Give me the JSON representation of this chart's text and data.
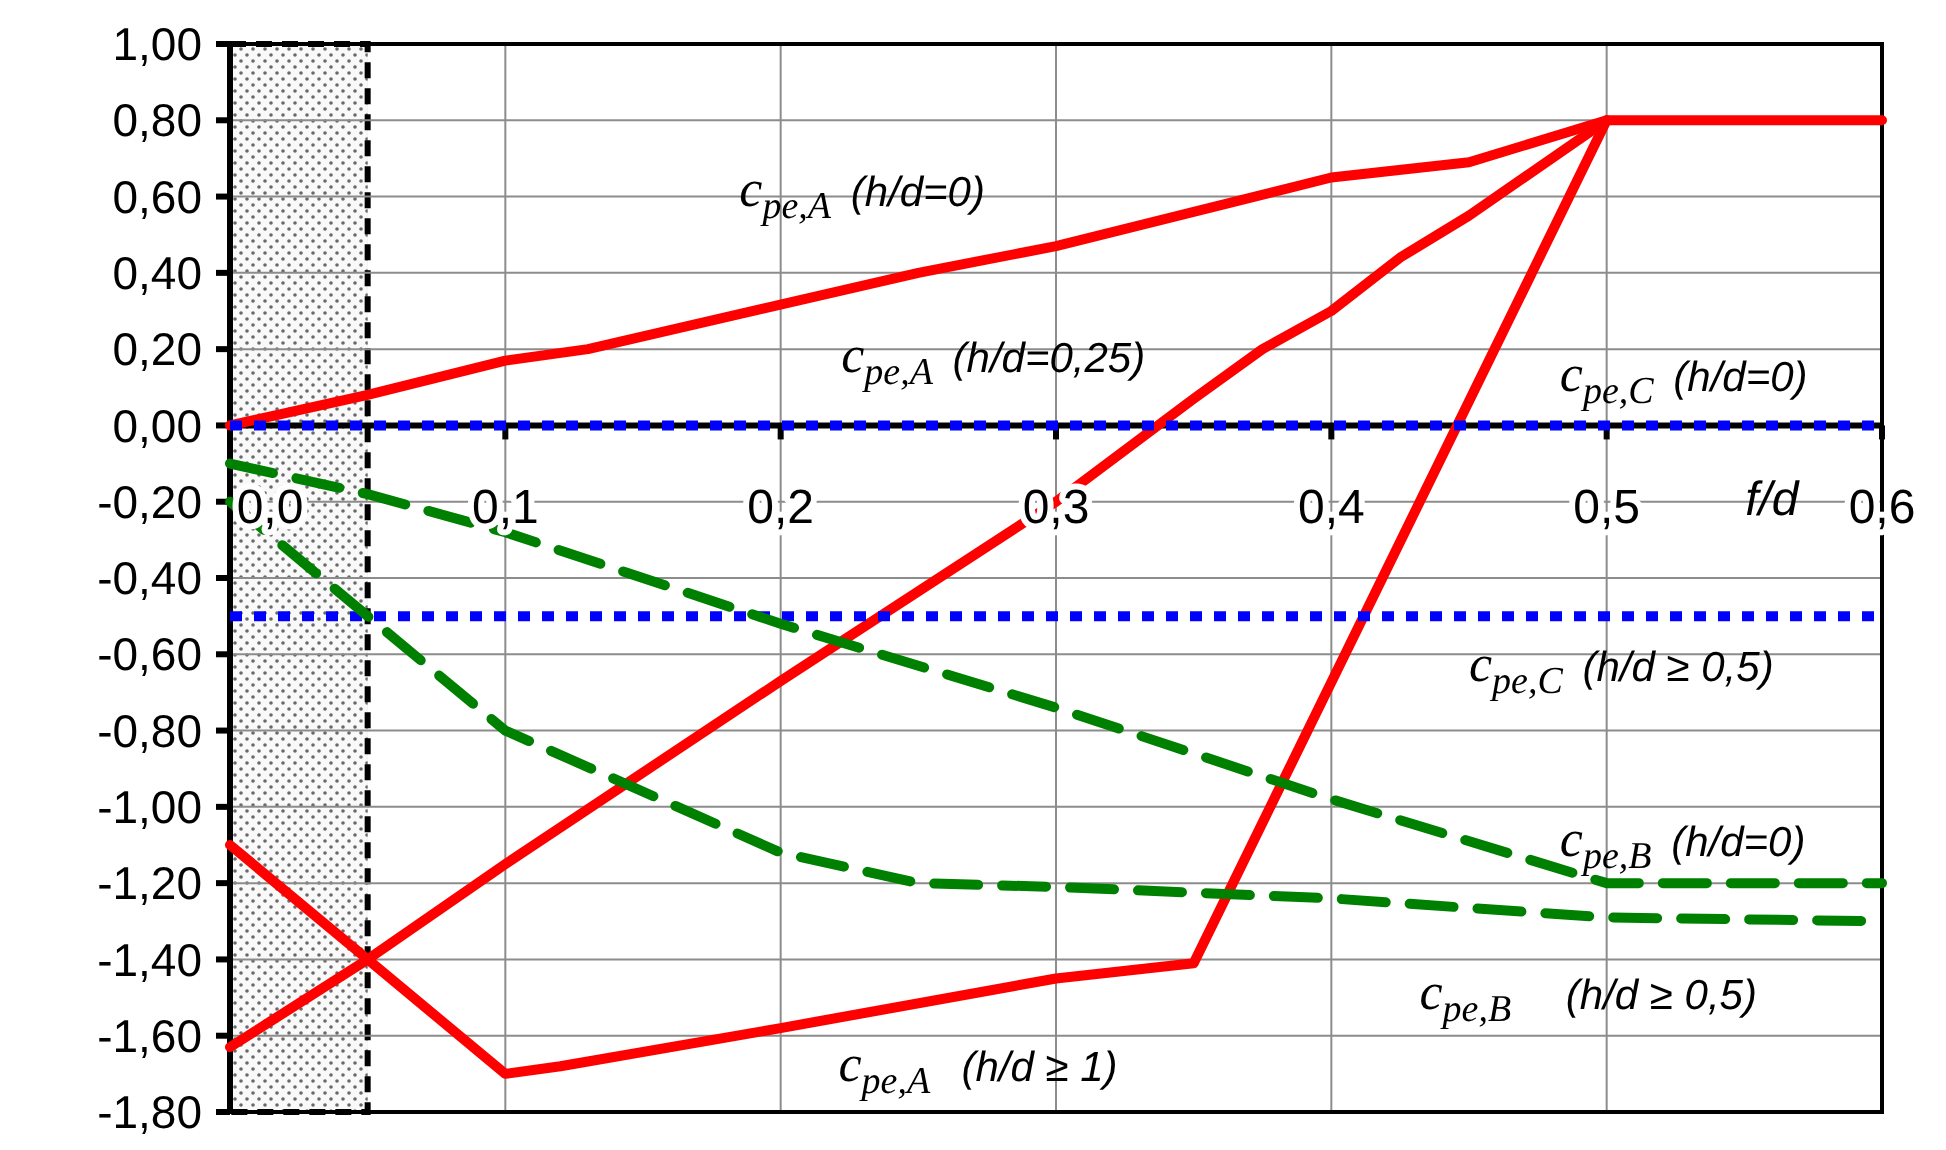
{
  "chart_data": {
    "type": "line",
    "xlabel": "f/d",
    "xlim": [
      0,
      0.6
    ],
    "xticks": [
      {
        "value": 0,
        "label": "0,0"
      },
      {
        "value": 0.1,
        "label": "0,1"
      },
      {
        "value": 0.2,
        "label": "0,2"
      },
      {
        "value": 0.3,
        "label": "0,3"
      },
      {
        "value": 0.4,
        "label": "0,4"
      },
      {
        "value": 0.5,
        "label": "0,5"
      },
      {
        "value": 0.6,
        "label": "0,6"
      }
    ],
    "ylim": [
      -1.8,
      1
    ],
    "yticks": [
      {
        "value": 1,
        "label": "1,00"
      },
      {
        "value": 0.8,
        "label": "0,80"
      },
      {
        "value": 0.6,
        "label": "0,60"
      },
      {
        "value": 0.4,
        "label": "0,40"
      },
      {
        "value": 0.2,
        "label": "0,20"
      },
      {
        "value": 0,
        "label": "0,00"
      },
      {
        "value": -0.2,
        "label": "-0,20"
      },
      {
        "value": -0.4,
        "label": "-0,40"
      },
      {
        "value": -0.6,
        "label": "-0,60"
      },
      {
        "value": -0.8,
        "label": "-0,80"
      },
      {
        "value": -1,
        "label": "-1,00"
      },
      {
        "value": -1.2,
        "label": "-1,20"
      },
      {
        "value": -1.4,
        "label": "-1,40"
      },
      {
        "value": -1.6,
        "label": "-1,60"
      },
      {
        "value": -1.8,
        "label": "-1,80"
      }
    ],
    "grid": true,
    "marker": "none",
    "bands": [
      {
        "axis": "x",
        "from": 0,
        "to": 0.05,
        "color": "#d9d9d9"
      }
    ],
    "series": [
      {
        "name": "c$_{pe,A}$ (h/d=0)",
        "color": "#ff0000",
        "line_style": "solid",
        "x": [
          0,
          0.05,
          0.1,
          0.13,
          0.25,
          0.3,
          0.4,
          0.45,
          0.5,
          0.6
        ],
        "values": [
          0,
          0.08,
          0.17,
          0.2,
          0.4,
          0.47,
          0.65,
          0.69,
          0.8,
          0.8
        ]
      },
      {
        "name": "c$_{pe,A}$ (h/d=0,25)",
        "color": "#ff0000",
        "line_style": "solid",
        "x": [
          0,
          0.05,
          0.1,
          0.2,
          0.3,
          0.35,
          0.375,
          0.4,
          0.425,
          0.45,
          0.5
        ],
        "values": [
          -1.63,
          -1.4,
          -1.15,
          -0.67,
          -0.2,
          0.07,
          0.2,
          0.3,
          0.44,
          0.55,
          0.8
        ]
      },
      {
        "name": "c$_{pe,A}$  (h/d ≥ 1)",
        "color": "#ff0000",
        "line_style": "solid",
        "x": [
          0,
          0.05,
          0.1,
          0.12,
          0.2,
          0.3,
          0.35,
          0.5
        ],
        "values": [
          -1.1,
          -1.4,
          -1.7,
          -1.68,
          -1.58,
          -1.45,
          -1.41,
          0.8
        ]
      },
      {
        "name": "c$_{pe,C}$ (h/d=0)",
        "color": "#0000ff",
        "line_style": "dotted",
        "x": [
          0,
          0.6
        ],
        "values": [
          0,
          0
        ]
      },
      {
        "name": "c$_{pe,C}$ (h/d ≥ 0,5)",
        "color": "#0000ff",
        "line_style": "dotted",
        "x": [
          0,
          0.6
        ],
        "values": [
          -0.5,
          -0.5
        ]
      },
      {
        "name": "c$_{pe,B}$ (h/d=0)",
        "color": "#008000",
        "line_style": "dashed",
        "x": [
          0,
          0.05,
          0.1,
          0.2,
          0.3,
          0.4,
          0.5,
          0.6
        ],
        "values": [
          -0.1,
          -0.18,
          -0.28,
          -0.52,
          -0.74,
          -0.98,
          -1.2,
          -1.2
        ]
      },
      {
        "name": "c$_{pe,B}$    (h/d ≥ 0,5)",
        "color": "#008000",
        "line_style": "dashed",
        "x": [
          0,
          0.05,
          0.1,
          0.2,
          0.25,
          0.3,
          0.4,
          0.5,
          0.6
        ],
        "values": [
          -0.2,
          -0.5,
          -0.8,
          -1.12,
          -1.2,
          -1.21,
          -1.24,
          -1.29,
          -1.3
        ]
      }
    ]
  }
}
